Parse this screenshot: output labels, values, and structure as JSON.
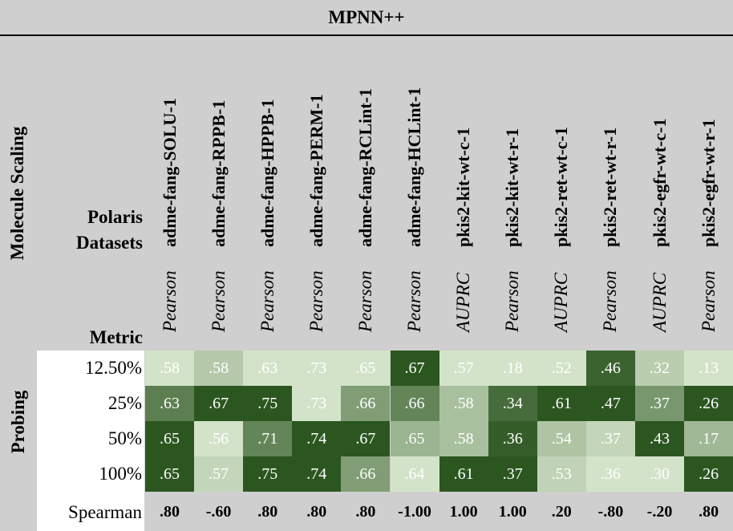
{
  "title": "MPNN++",
  "side_label": "Molecule Scaling",
  "datasets_label": "Polaris\nDatasets",
  "metric_label": "Metric",
  "probing_label": "Probing",
  "spearman_label": "Spearman",
  "chart_data": {
    "type": "heatmap",
    "datasets": [
      "adme-fang-SOLU-1",
      "adme-fang-RPPB-1",
      "adme-fang-HPPB-1",
      "adme-fang-PERM-1",
      "adme-fang-RCLint-1",
      "adme-fang-HCLint-1",
      "pkis2-kit-wt-c-1",
      "pkis2-kit-wt-r-1",
      "pkis2-ret-wt-c-1",
      "pkis2-ret-wt-r-1",
      "pkis2-egfr-wt-c-1",
      "pkis2-egfr-wt-r-1"
    ],
    "metrics": [
      "Pearson",
      "Pearson",
      "Pearson",
      "Pearson",
      "Pearson",
      "Pearson",
      "AUPRC",
      "Pearson",
      "AUPRC",
      "Pearson",
      "AUPRC",
      "Pearson"
    ],
    "rows": [
      "12.50%",
      "25%",
      "50%",
      "100%"
    ],
    "labels": [
      [
        ".58",
        ".58",
        ".63",
        ".73",
        ".65",
        ".67",
        ".57",
        ".18",
        ".52",
        ".46",
        ".32",
        ".13"
      ],
      [
        ".63",
        ".67",
        ".75",
        ".73",
        ".66",
        ".66",
        ".58",
        ".34",
        ".61",
        ".47",
        ".37",
        ".26"
      ],
      [
        ".65",
        ".56",
        ".71",
        ".74",
        ".67",
        ".65",
        ".58",
        ".36",
        ".54",
        ".37",
        ".43",
        ".17"
      ],
      [
        ".65",
        ".57",
        ".75",
        ".74",
        ".66",
        ".64",
        ".61",
        ".37",
        ".53",
        ".36",
        ".30",
        ".26"
      ]
    ],
    "values": [
      [
        0.58,
        0.58,
        0.63,
        0.73,
        0.65,
        0.67,
        0.57,
        0.18,
        0.52,
        0.46,
        0.32,
        0.13
      ],
      [
        0.63,
        0.67,
        0.75,
        0.73,
        0.66,
        0.66,
        0.58,
        0.34,
        0.61,
        0.47,
        0.37,
        0.26
      ],
      [
        0.65,
        0.56,
        0.71,
        0.74,
        0.67,
        0.65,
        0.58,
        0.36,
        0.54,
        0.37,
        0.43,
        0.17
      ],
      [
        0.65,
        0.57,
        0.75,
        0.74,
        0.66,
        0.64,
        0.61,
        0.37,
        0.53,
        0.36,
        0.3,
        0.26
      ]
    ],
    "spearman": [
      ".80",
      "-.60",
      ".80",
      ".80",
      ".80",
      "-1.00",
      "1.00",
      "1.00",
      ".20",
      "-.80",
      "-.20",
      ".80"
    ],
    "colors": {
      "low": "#d3e3c9",
      "high": "#2c5620"
    }
  }
}
